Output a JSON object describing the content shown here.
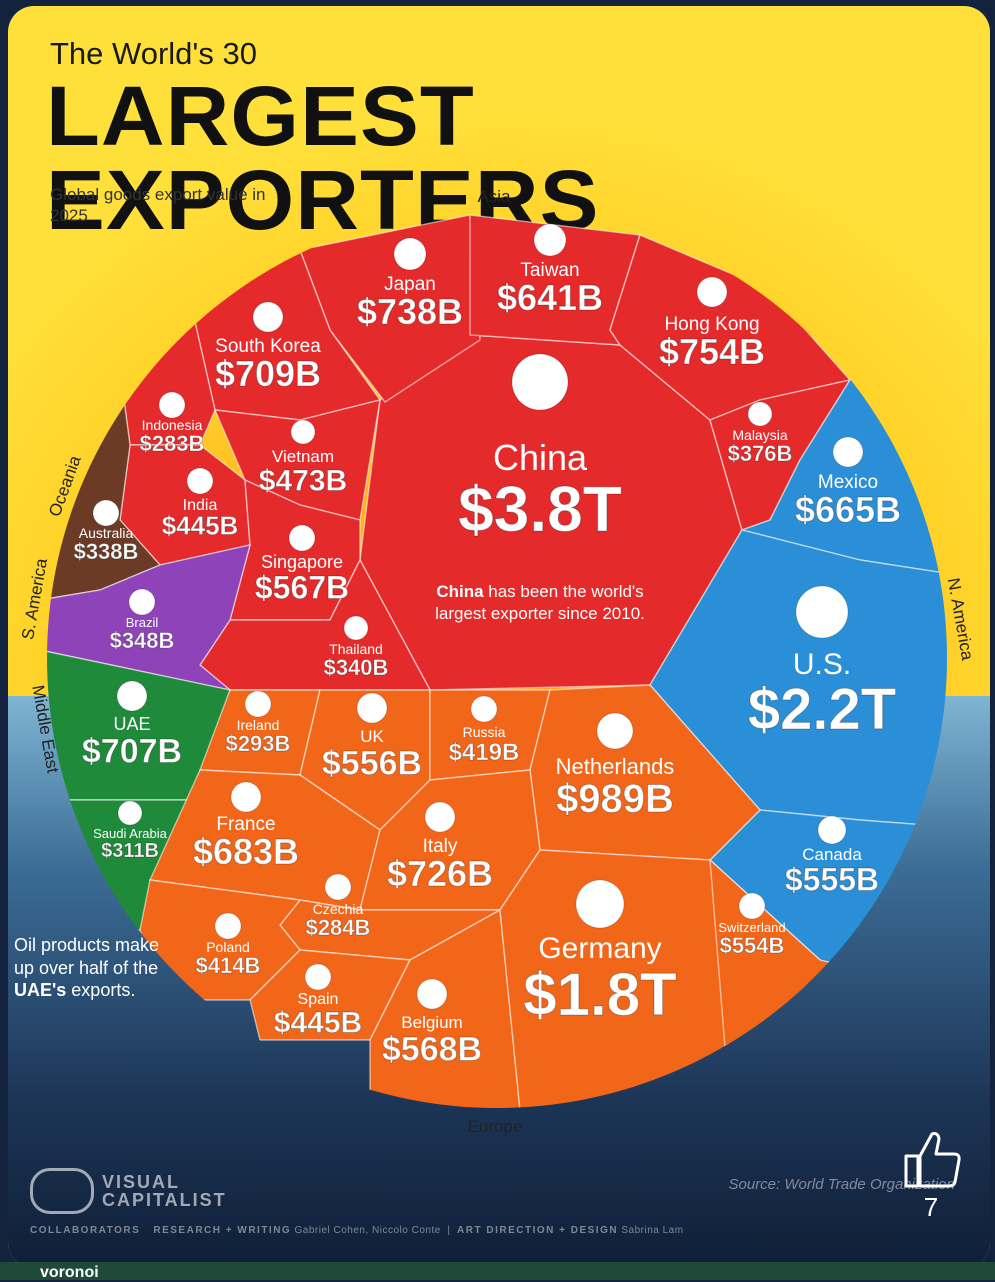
{
  "header": {
    "title_small": "The World's 30",
    "title_big": "LARGEST EXPORTERS",
    "subtitle": "Global goods export value in 2025"
  },
  "chart_data": {
    "type": "voronoi",
    "title": "The World's 30 LARGEST EXPORTERS",
    "subtitle": "Global goods export value in 2025",
    "unit": "USD",
    "regions": [
      {
        "name": "Asia",
        "color": "#e42a2a"
      },
      {
        "name": "N. America",
        "color": "#2a8fd6"
      },
      {
        "name": "Europe",
        "color": "#f2661a"
      },
      {
        "name": "Middle East",
        "color": "#1f8a3a"
      },
      {
        "name": "S. America",
        "color": "#8e44b8"
      },
      {
        "name": "Oceania",
        "color": "#6b3b26"
      }
    ],
    "countries": [
      {
        "name": "China",
        "label": "$3.8T",
        "value_billion": 3800,
        "region": "Asia",
        "note_bold": "China",
        "note": "has been the world's largest exporter since 2010."
      },
      {
        "name": "Japan",
        "label": "$738B",
        "value_billion": 738,
        "region": "Asia"
      },
      {
        "name": "Taiwan",
        "label": "$641B",
        "value_billion": 641,
        "region": "Asia"
      },
      {
        "name": "Hong Kong",
        "label": "$754B",
        "value_billion": 754,
        "region": "Asia"
      },
      {
        "name": "South Korea",
        "label": "$709B",
        "value_billion": 709,
        "region": "Asia"
      },
      {
        "name": "Indonesia",
        "label": "$283B",
        "value_billion": 283,
        "region": "Asia"
      },
      {
        "name": "Vietnam",
        "label": "$473B",
        "value_billion": 473,
        "region": "Asia"
      },
      {
        "name": "Malaysia",
        "label": "$376B",
        "value_billion": 376,
        "region": "Asia"
      },
      {
        "name": "India",
        "label": "$445B",
        "value_billion": 445,
        "region": "Asia"
      },
      {
        "name": "Singapore",
        "label": "$567B",
        "value_billion": 567,
        "region": "Asia"
      },
      {
        "name": "Thailand",
        "label": "$340B",
        "value_billion": 340,
        "region": "Asia"
      },
      {
        "name": "Australia",
        "label": "$338B",
        "value_billion": 338,
        "region": "Oceania"
      },
      {
        "name": "Brazil",
        "label": "$348B",
        "value_billion": 348,
        "region": "S. America"
      },
      {
        "name": "Mexico",
        "label": "$665B",
        "value_billion": 665,
        "region": "N. America"
      },
      {
        "name": "U.S.",
        "label": "$2.2T",
        "value_billion": 2200,
        "region": "N. America"
      },
      {
        "name": "Canada",
        "label": "$555B",
        "value_billion": 555,
        "region": "N. America"
      },
      {
        "name": "UAE",
        "label": "$707B",
        "value_billion": 707,
        "region": "Middle East"
      },
      {
        "name": "Saudi Arabia",
        "label": "$311B",
        "value_billion": 311,
        "region": "Middle East"
      },
      {
        "name": "Ireland",
        "label": "$293B",
        "value_billion": 293,
        "region": "Europe"
      },
      {
        "name": "UK",
        "label": "$556B",
        "value_billion": 556,
        "region": "Europe"
      },
      {
        "name": "Russia",
        "label": "$419B",
        "value_billion": 419,
        "region": "Europe"
      },
      {
        "name": "Netherlands",
        "label": "$989B",
        "value_billion": 989,
        "region": "Europe"
      },
      {
        "name": "France",
        "label": "$683B",
        "value_billion": 683,
        "region": "Europe"
      },
      {
        "name": "Italy",
        "label": "$726B",
        "value_billion": 726,
        "region": "Europe"
      },
      {
        "name": "Czechia",
        "label": "$284B",
        "value_billion": 284,
        "region": "Europe"
      },
      {
        "name": "Poland",
        "label": "$414B",
        "value_billion": 414,
        "region": "Europe"
      },
      {
        "name": "Spain",
        "label": "$445B",
        "value_billion": 445,
        "region": "Europe"
      },
      {
        "name": "Belgium",
        "label": "$568B",
        "value_billion": 568,
        "region": "Europe"
      },
      {
        "name": "Germany",
        "label": "$1.8T",
        "value_billion": 1800,
        "region": "Europe"
      },
      {
        "name": "Switzerland",
        "label": "$554B",
        "value_billion": 554,
        "region": "Europe"
      }
    ]
  },
  "annotation": {
    "line1": "Oil products make up over half of the ",
    "bold": "UAE's",
    "line2": " exports."
  },
  "footer": {
    "logo_line1": "VISUAL",
    "logo_line2": "CAPITALIST",
    "source": "Source: World Trade Organization",
    "collaborators": "COLLABORATORS",
    "research": "RESEARCH + WRITING",
    "research_names": "Gabriel Cohen, Niccolo Conte",
    "art": "ART DIRECTION + DESIGN",
    "art_names": "Sabrina Lam",
    "like_count": "7",
    "bottom_brand": "voronoi"
  }
}
